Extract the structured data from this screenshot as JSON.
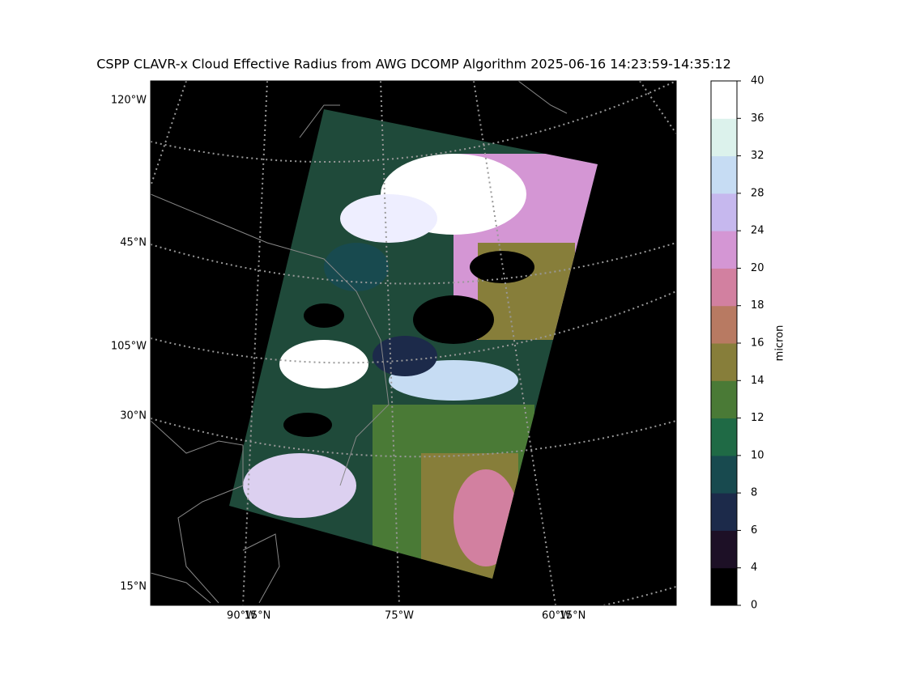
{
  "title": "CSPP CLAVR-x Cloud Effective Radius from AWG DCOMP Algorithm 2025-06-16 14:23:59-14:35:12",
  "map": {
    "left_labels": [
      "120°W",
      "45°N",
      "105°W",
      "30°N",
      "15°N"
    ],
    "bottom_labels": [
      "90°W",
      "15°N",
      "75°W",
      "60°W",
      "15°N"
    ]
  },
  "colorbar": {
    "label": "micron",
    "ticks": [
      0,
      4,
      6,
      8,
      10,
      12,
      14,
      16,
      18,
      20,
      24,
      28,
      32,
      36,
      40
    ],
    "colors": [
      "#000000",
      "#1d1026",
      "#1c2a4a",
      "#184a4f",
      "#1f6a45",
      "#4a7a36",
      "#877e3a",
      "#b87a62",
      "#d280a0",
      "#d496d4",
      "#c6b8ee",
      "#c6dcf3",
      "#dcf2ec",
      "#ffffff"
    ]
  }
}
